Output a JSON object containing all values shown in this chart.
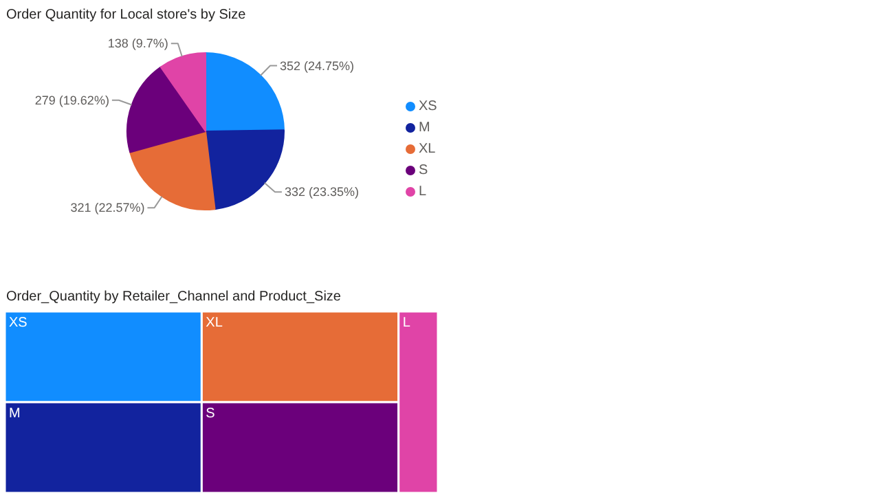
{
  "chart_data": [
    {
      "type": "pie",
      "title": "Order Quantity for Local store's by Size",
      "categories": [
        "XS",
        "M",
        "XL",
        "S",
        "L"
      ],
      "values": [
        352,
        332,
        321,
        279,
        138
      ],
      "value_labels": [
        "352 (24.75%)",
        "332 (23.35%)",
        "321 (22.57%)",
        "279 (19.62%)",
        "138 (9.7%)"
      ],
      "colors": [
        "#118dff",
        "#12239e",
        "#e66c37",
        "#6b007b",
        "#e044a7"
      ],
      "legend": "right"
    },
    {
      "type": "other",
      "title": "Order_Quantity by Retailer_Channel and Product_Size",
      "categories": [
        "XS",
        "M",
        "XL",
        "S",
        "L"
      ],
      "colors": [
        "#118dff",
        "#12239e",
        "#e66c37",
        "#6b007b",
        "#e044a7"
      ]
    }
  ]
}
